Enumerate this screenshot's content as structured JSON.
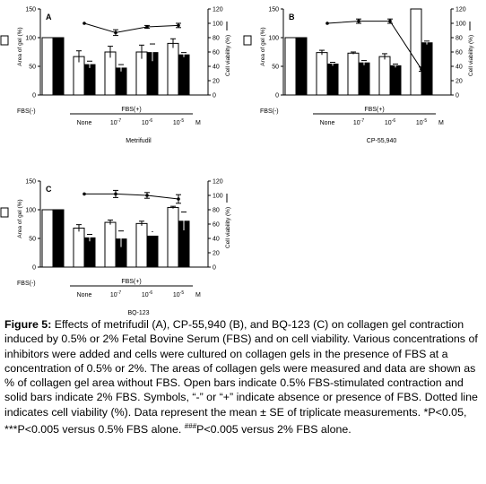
{
  "chart_data": [
    {
      "type": "bar",
      "panel_letter": "A",
      "drug_name": "Metrifudil",
      "ylabel_left": "Area of gel (%)",
      "ylabel_right": "Cell viability (%)",
      "left_ylim": [
        0,
        150
      ],
      "left_ticks": [
        "0",
        "50",
        "100",
        "150"
      ],
      "right_ylim": [
        0,
        120
      ],
      "right_ticks": [
        "0",
        "20",
        "40",
        "60",
        "80",
        "100",
        "120"
      ],
      "fbs_minus_label": "FBS(-)",
      "fbs_plus_label": "FBS(+)",
      "categories": [
        "None",
        "10",
        "10",
        "10"
      ],
      "category_exponents": [
        "",
        "-7",
        "-6",
        "-5"
      ],
      "unit_label": "M",
      "series": [
        {
          "name": "0.5% FBS",
          "fbs_minus": 100,
          "values": [
            67,
            75,
            75,
            90
          ],
          "errors": [
            10,
            10,
            12,
            8
          ]
        },
        {
          "name": "2% FBS",
          "fbs_minus": 100,
          "values": [
            53,
            47,
            74,
            70
          ],
          "errors": [
            6,
            6,
            15,
            4
          ]
        }
      ],
      "viability": [
        100,
        87,
        95,
        97
      ],
      "viability_errors": [
        0,
        4,
        2,
        3
      ],
      "annotations": []
    },
    {
      "type": "bar",
      "panel_letter": "B",
      "drug_name": "CP-55,940",
      "ylabel_left": "Area of gel (%)",
      "ylabel_right": "Cell viability (%)",
      "left_ylim": [
        0,
        150
      ],
      "left_ticks": [
        "0",
        "50",
        "100",
        "150"
      ],
      "right_ylim": [
        0,
        120
      ],
      "right_ticks": [
        "0",
        "20",
        "40",
        "60",
        "80",
        "100",
        "120"
      ],
      "fbs_minus_label": "FBS(-)",
      "fbs_plus_label": "FBS(+)",
      "categories": [
        "None",
        "10",
        "10",
        "10"
      ],
      "category_exponents": [
        "",
        "-7",
        "-6",
        "-5"
      ],
      "unit_label": "M",
      "series": [
        {
          "name": "0.5% FBS",
          "fbs_minus": 100,
          "values": [
            74,
            73,
            67,
            150
          ],
          "errors": [
            4,
            2,
            5,
            0
          ]
        },
        {
          "name": "2% FBS",
          "fbs_minus": 100,
          "values": [
            54,
            56,
            51,
            91
          ],
          "errors": [
            3,
            4,
            3,
            3
          ]
        }
      ],
      "viability": [
        100,
        103,
        103,
        36
      ],
      "viability_errors": [
        0,
        3,
        3,
        3
      ],
      "annotations": []
    },
    {
      "type": "bar",
      "panel_letter": "C",
      "drug_name": "BQ-123",
      "ylabel_left": "Area of gel (%)",
      "ylabel_right": "Cell viability (%)",
      "left_ylim": [
        0,
        150
      ],
      "left_ticks": [
        "0",
        "50",
        "100",
        "150"
      ],
      "right_ylim": [
        0,
        120
      ],
      "right_ticks": [
        "0",
        "20",
        "40",
        "60",
        "80",
        "100",
        "120"
      ],
      "fbs_minus_label": "FBS(-)",
      "fbs_plus_label": "FBS(+)",
      "categories": [
        "None",
        "10",
        "10",
        "10"
      ],
      "category_exponents": [
        "",
        "-7",
        "-6",
        "-5"
      ],
      "unit_label": "M",
      "series": [
        {
          "name": "0.5% FBS",
          "fbs_minus": 100,
          "values": [
            68,
            78,
            76,
            104
          ],
          "errors": [
            6,
            4,
            4,
            2
          ]
        },
        {
          "name": "2% FBS",
          "fbs_minus": 100,
          "values": [
            51,
            49,
            54,
            80
          ],
          "errors": [
            6,
            14,
            0,
            16
          ]
        }
      ],
      "viability": [
        102,
        102,
        100,
        95
      ],
      "viability_errors": [
        0,
        5,
        4,
        6
      ],
      "annotations": [
        {
          "category_index": 2,
          "series_index": 1,
          "text": "-"
        }
      ]
    }
  ],
  "caption": {
    "label": "Figure 5:",
    "text": "Effects of metrifudil (A), CP-55,940 (B), and BQ-123 (C) on collagen gel contraction induced by 0.5% or 2% Fetal Bovine Serum (FBS) and on cell viability. Various concentrations of inhibitors were added and cells were cultured on collagen gels in the presence of FBS at a concentration of 0.5% or 2%. The areas of collagen gels were measured and data are shown as % of collagen gel area without FBS. Open bars indicate 0.5% FBS-stimulated contraction and solid bars indicate 2% FBS. Symbols, “-” or “+” indicate absence or presence of FBS. Dotted line indicates cell viability (%). Data represent the mean ± SE of triplicate measurements. *P<0.05, ***P<0.005 versus 0.5% FBS alone.",
    "hash_symbol": "###",
    "hash_text": "P<0.005 versus 2% FBS alone."
  }
}
